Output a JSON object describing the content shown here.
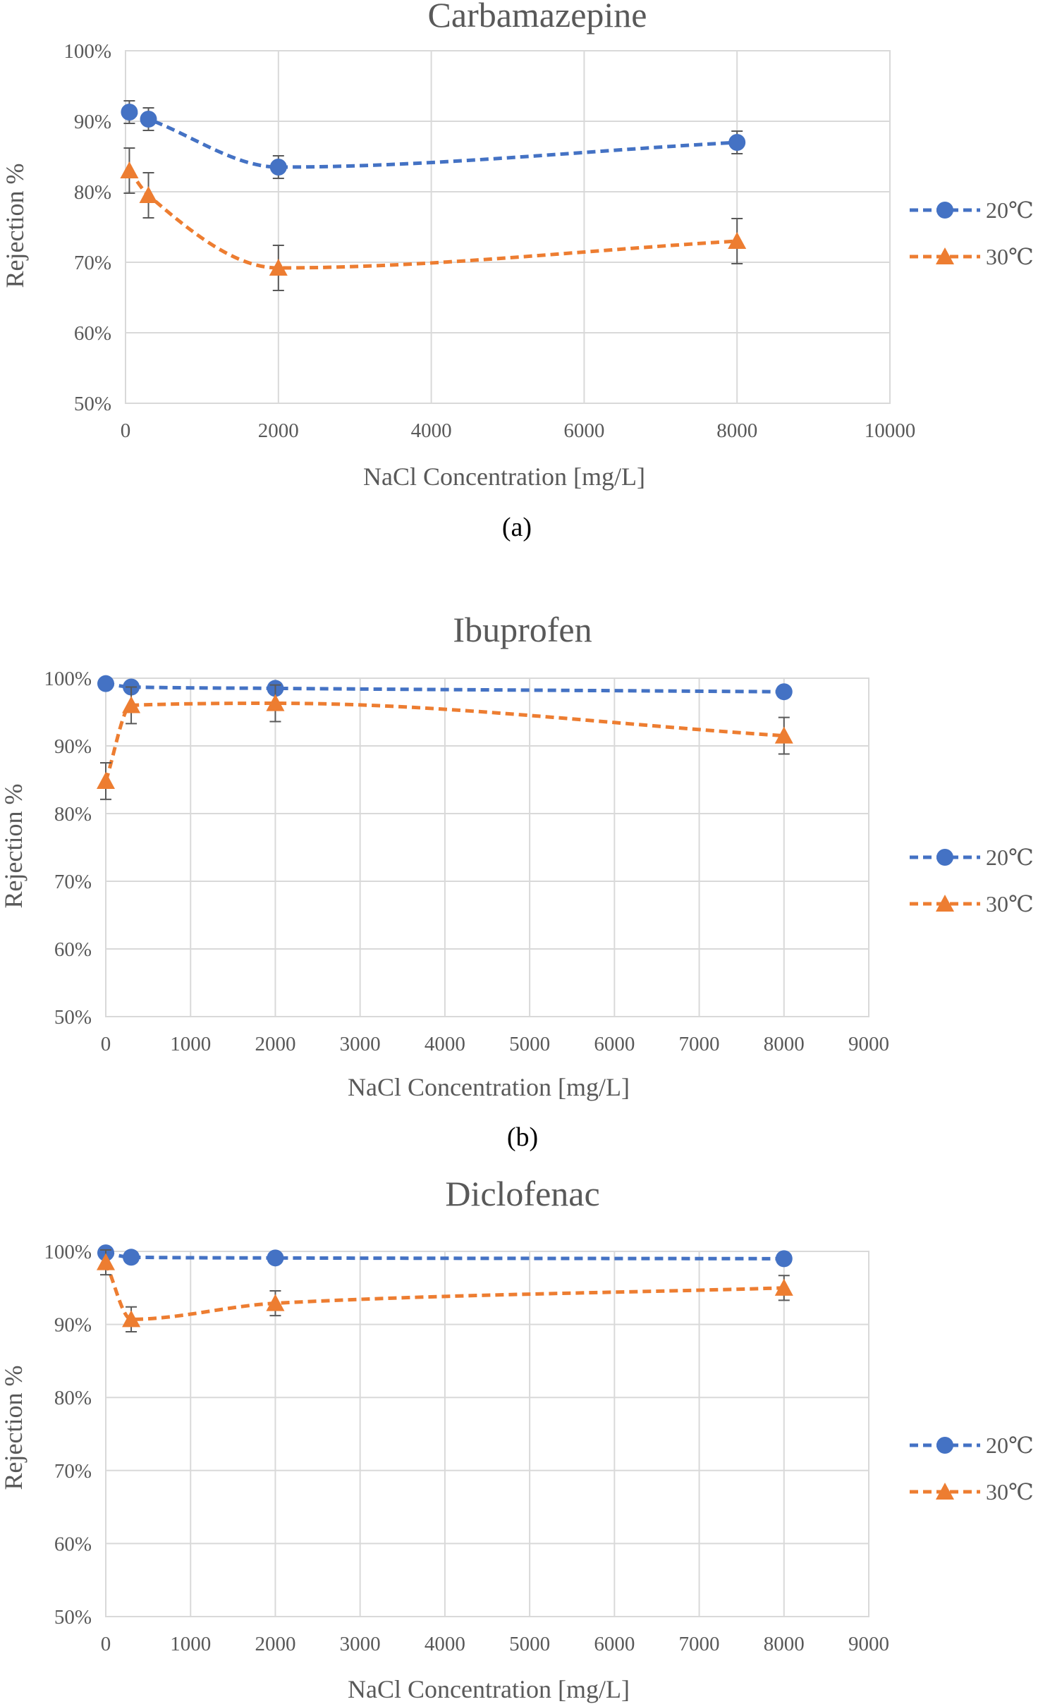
{
  "colors": {
    "series_20": "#4472c4",
    "series_30": "#ed7d31",
    "grid": "#d9d9d9",
    "text": "#595959",
    "errorbar": "#595959"
  },
  "chart_data": [
    {
      "type": "scatter",
      "title": "Carbamazepine",
      "caption": "(a)",
      "xlabel": "NaCl Concentration [mg/L]",
      "ylabel": "Rejection %",
      "xlim": [
        0,
        10000
      ],
      "xticks": [
        "0",
        "2000",
        "4000",
        "6000",
        "8000",
        "10000"
      ],
      "ylim": [
        50,
        100
      ],
      "yticks": [
        "50%",
        "60%",
        "70%",
        "80%",
        "90%",
        "100%"
      ],
      "grid": true,
      "legend_position": "right",
      "series": [
        {
          "name": "20℃",
          "marker": "circle",
          "line": "dashed smooth",
          "x": [
            50,
            300,
            2000,
            8000
          ],
          "y": [
            91.3,
            90.3,
            83.5,
            87.0
          ],
          "err": [
            1.6,
            1.6,
            1.6,
            1.6
          ]
        },
        {
          "name": "30℃",
          "marker": "triangle",
          "line": "dashed smooth",
          "x": [
            50,
            300,
            2000,
            8000
          ],
          "y": [
            83.0,
            79.5,
            69.2,
            73.0
          ],
          "err": [
            3.2,
            3.2,
            3.2,
            3.2
          ]
        }
      ]
    },
    {
      "type": "scatter",
      "title": "Ibuprofen",
      "caption": "(b)",
      "xlabel": "NaCl Concentration [mg/L]",
      "ylabel": "Rejection %",
      "xlim": [
        0,
        9000
      ],
      "xticks": [
        "0",
        "1000",
        "2000",
        "3000",
        "4000",
        "5000",
        "6000",
        "7000",
        "8000",
        "9000"
      ],
      "ylim": [
        50,
        100
      ],
      "yticks": [
        "50%",
        "60%",
        "70%",
        "80%",
        "90%",
        "100%"
      ],
      "grid": true,
      "legend_position": "right",
      "series": [
        {
          "name": "20℃",
          "marker": "circle",
          "line": "dashed smooth",
          "x": [
            0,
            300,
            2000,
            8000
          ],
          "y": [
            99.2,
            98.7,
            98.5,
            98.0
          ],
          "err": [
            0.3,
            0.3,
            0.3,
            0.3
          ]
        },
        {
          "name": "30℃",
          "marker": "triangle",
          "line": "dashed smooth",
          "x": [
            0,
            300,
            2000,
            8000
          ],
          "y": [
            84.8,
            96.0,
            96.3,
            91.5
          ],
          "err": [
            2.7,
            2.7,
            2.7,
            2.7
          ]
        }
      ]
    },
    {
      "type": "scatter",
      "title": "Diclofenac",
      "caption": "",
      "xlabel": "NaCl Concentration [mg/L]",
      "ylabel": "Rejection %",
      "xlim": [
        0,
        9000
      ],
      "xticks": [
        "0",
        "1000",
        "2000",
        "3000",
        "4000",
        "5000",
        "6000",
        "7000",
        "8000",
        "9000"
      ],
      "ylim": [
        50,
        100
      ],
      "yticks": [
        "50%",
        "60%",
        "70%",
        "80%",
        "90%",
        "100%"
      ],
      "grid": true,
      "legend_position": "right",
      "series": [
        {
          "name": "20℃",
          "marker": "circle",
          "line": "dashed smooth",
          "x": [
            0,
            300,
            2000,
            8000
          ],
          "y": [
            99.8,
            99.2,
            99.1,
            99.0
          ],
          "err": [
            0.2,
            0.2,
            0.2,
            0.2
          ]
        },
        {
          "name": "30℃",
          "marker": "triangle",
          "line": "dashed smooth",
          "x": [
            0,
            300,
            2000,
            8000
          ],
          "y": [
            98.5,
            90.7,
            92.9,
            95.0
          ],
          "err": [
            1.7,
            1.7,
            1.7,
            1.7
          ]
        }
      ]
    }
  ]
}
